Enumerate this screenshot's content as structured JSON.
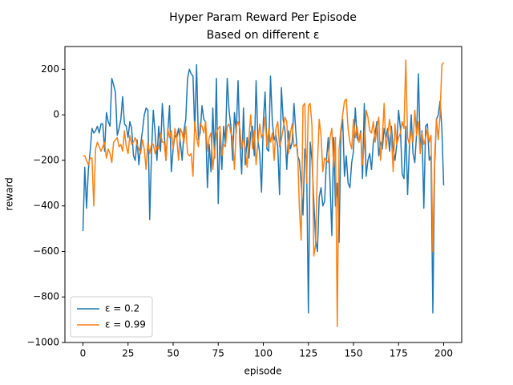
{
  "chart_data": {
    "type": "line",
    "title": "Hyper Param Reward Per Episode",
    "subtitle": "Based on different ε",
    "x_label": "episode",
    "y_label": "reward",
    "xlim": [
      -10,
      210
    ],
    "ylim": [
      -1000,
      300
    ],
    "xticks": [
      0,
      25,
      50,
      75,
      100,
      125,
      150,
      175,
      200
    ],
    "yticks": [
      {
        "value": -1000,
        "label": "−1000"
      },
      {
        "value": -800,
        "label": "−800"
      },
      {
        "value": -600,
        "label": "−600"
      },
      {
        "value": -400,
        "label": "−400"
      },
      {
        "value": -200,
        "label": "−200"
      },
      0,
      200
    ],
    "legend": "lower left",
    "x": [
      0,
      1,
      2,
      3,
      4,
      5,
      6,
      7,
      8,
      9,
      10,
      11,
      12,
      13,
      14,
      15,
      16,
      17,
      18,
      19,
      20,
      21,
      22,
      23,
      24,
      25,
      26,
      27,
      28,
      29,
      30,
      31,
      32,
      33,
      34,
      35,
      36,
      37,
      38,
      39,
      40,
      41,
      42,
      43,
      44,
      45,
      46,
      47,
      48,
      49,
      50,
      51,
      52,
      53,
      54,
      55,
      56,
      57,
      58,
      59,
      60,
      61,
      62,
      63,
      64,
      65,
      66,
      67,
      68,
      69,
      70,
      71,
      72,
      73,
      74,
      75,
      76,
      77,
      78,
      79,
      80,
      81,
      82,
      83,
      84,
      85,
      86,
      87,
      88,
      89,
      90,
      91,
      92,
      93,
      94,
      95,
      96,
      97,
      98,
      99,
      100,
      101,
      102,
      103,
      104,
      105,
      106,
      107,
      108,
      109,
      110,
      111,
      112,
      113,
      114,
      115,
      116,
      117,
      118,
      119,
      120,
      121,
      122,
      123,
      124,
      125,
      126,
      127,
      128,
      129,
      130,
      131,
      132,
      133,
      134,
      135,
      136,
      137,
      138,
      139,
      140,
      141,
      142,
      143,
      144,
      145,
      146,
      147,
      148,
      149,
      150,
      151,
      152,
      153,
      154,
      155,
      156,
      157,
      158,
      159,
      160,
      161,
      162,
      163,
      164,
      165,
      166,
      167,
      168,
      169,
      170,
      171,
      172,
      173,
      174,
      175,
      176,
      177,
      178,
      179,
      180,
      181,
      182,
      183,
      184,
      185,
      186,
      187,
      188,
      189,
      190,
      191,
      192,
      193,
      194,
      195,
      196,
      197,
      198,
      199,
      200
    ],
    "series": [
      {
        "name": "ε = 0.2",
        "color": "#1f77b4",
        "values": [
          -510,
          -230,
          -410,
          -240,
          -160,
          -60,
          -80,
          -70,
          -50,
          -80,
          -40,
          -40,
          -160,
          10,
          -30,
          -50,
          160,
          130,
          100,
          -90,
          -60,
          -20,
          80,
          -40,
          -50,
          -100,
          -30,
          -60,
          -180,
          -200,
          -110,
          -220,
          -130,
          -70,
          0,
          30,
          20,
          -460,
          -170,
          20,
          -80,
          -200,
          -50,
          -160,
          50,
          -70,
          -200,
          -80,
          40,
          -250,
          -150,
          -90,
          -100,
          -60,
          -120,
          -200,
          -70,
          -20,
          160,
          200,
          180,
          170,
          -70,
          220,
          -110,
          -80,
          40,
          -20,
          -30,
          -320,
          -130,
          -250,
          30,
          -190,
          160,
          -390,
          -70,
          -240,
          -50,
          -130,
          160,
          20,
          -50,
          -200,
          10,
          -80,
          150,
          -120,
          -260,
          30,
          -220,
          -100,
          -190,
          -80,
          -50,
          -180,
          150,
          -110,
          -170,
          -340,
          -30,
          100,
          -150,
          -160,
          170,
          -30,
          -110,
          -90,
          -140,
          -350,
          120,
          -20,
          -70,
          -240,
          -70,
          -150,
          -120,
          50,
          -70,
          -180,
          -200,
          -300,
          -440,
          -150,
          -210,
          -870,
          -120,
          -200,
          -380,
          -550,
          -600,
          -360,
          -320,
          -400,
          -380,
          -200,
          -100,
          -300,
          -530,
          -100,
          -400,
          -300,
          -560,
          -80,
          -20,
          -270,
          -180,
          -300,
          -320,
          -210,
          -160,
          30,
          -100,
          -120,
          -70,
          -280,
          50,
          -270,
          -200,
          -170,
          -240,
          -120,
          -80,
          -30,
          -180,
          -120,
          -150,
          -60,
          -100,
          -60,
          -160,
          -50,
          -150,
          -200,
          -130,
          20,
          -60,
          -260,
          -280,
          -50,
          -350,
          -140,
          0,
          -170,
          -210,
          -80,
          180,
          -150,
          -70,
          -410,
          -50,
          -40,
          -200,
          -180,
          -870,
          -220,
          -20,
          0,
          60,
          -60,
          -310
        ]
      },
      {
        "name": "ε = 0.99",
        "color": "#ff7f0e",
        "values": [
          -180,
          -180,
          -200,
          -220,
          -190,
          -190,
          -400,
          -150,
          -120,
          -140,
          -160,
          -140,
          -120,
          -190,
          -150,
          -170,
          -210,
          -120,
          -110,
          -100,
          -140,
          -130,
          -160,
          -70,
          -140,
          -170,
          -90,
          -130,
          -120,
          -100,
          -130,
          -150,
          -170,
          -110,
          -150,
          -240,
          -120,
          -170,
          -130,
          -130,
          -170,
          -140,
          -150,
          -80,
          -120,
          -120,
          -200,
          -60,
          -100,
          -70,
          -150,
          -60,
          -100,
          -200,
          -60,
          -80,
          -120,
          -50,
          -170,
          -180,
          -170,
          -270,
          -30,
          -100,
          -140,
          -40,
          -50,
          -80,
          -30,
          -160,
          -100,
          -80,
          -240,
          -160,
          -80,
          -60,
          -50,
          -180,
          -130,
          -140,
          -50,
          -40,
          -80,
          -100,
          -240,
          -50,
          -30,
          -60,
          -150,
          -100,
          -150,
          -230,
          -100,
          0,
          -150,
          -70,
          -220,
          -120,
          -40,
          -100,
          -80,
          -10,
          -140,
          -60,
          -120,
          -80,
          -200,
          -60,
          -30,
          -140,
          -110,
          -60,
          -10,
          -30,
          -170,
          -80,
          -40,
          -140,
          -130,
          -150,
          -410,
          -550,
          40,
          50,
          -300,
          40,
          50,
          -50,
          -620,
          -570,
          -220,
          -20,
          -90,
          -250,
          -190,
          -200,
          -210,
          -100,
          -60,
          -230,
          -100,
          -930,
          -150,
          -60,
          0,
          60,
          70,
          -60,
          -120,
          -150,
          -20,
          -100,
          -50,
          -120,
          -80,
          -220,
          -130,
          20,
          -10,
          -70,
          -80,
          -30,
          -120,
          -60,
          -10,
          -200,
          -100,
          50,
          -150,
          -90,
          -20,
          -90,
          -250,
          -40,
          -130,
          -100,
          -80,
          -30,
          -60,
          240,
          -100,
          -130,
          -70,
          -120,
          20,
          -90,
          -30,
          -170,
          -80,
          -130,
          -100,
          -60,
          -120,
          -90,
          -600,
          -180,
          -20,
          -110,
          0,
          220,
          230
        ]
      }
    ]
  }
}
